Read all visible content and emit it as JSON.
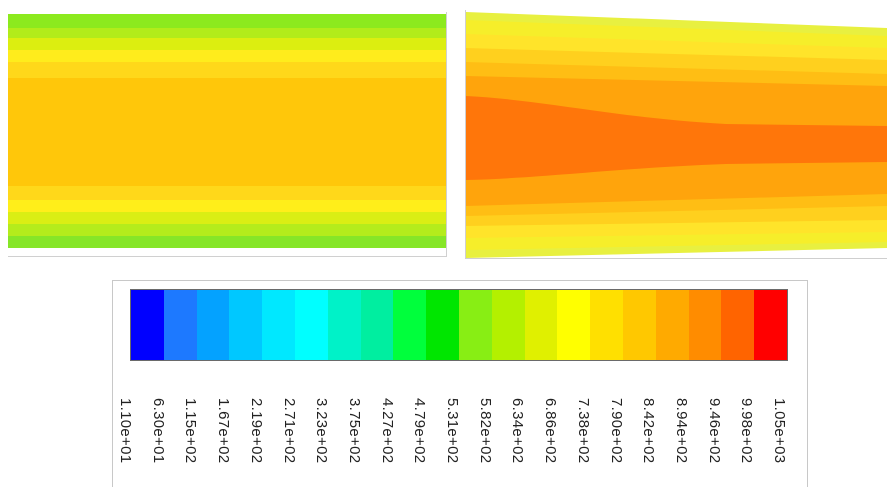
{
  "legend": {
    "colors": [
      "#0000ff",
      "#1d79ff",
      "#04a2ff",
      "#00c8ff",
      "#00e8ff",
      "#00ffff",
      "#00f2c8",
      "#00eea0",
      "#00ff3c",
      "#00e600",
      "#88ee14",
      "#b4f000",
      "#e0f000",
      "#ffff00",
      "#ffe000",
      "#ffc800",
      "#ffaa00",
      "#ff8c00",
      "#ff6400",
      "#ff0000"
    ],
    "ticks": [
      "1.10e+01",
      "6.30e+01",
      "1.15e+02",
      "1.67e+02",
      "2.19e+02",
      "2.71e+02",
      "3.23e+02",
      "3.75e+02",
      "4.27e+02",
      "4.79e+02",
      "5.31e+02",
      "5.82e+02",
      "6.34e+02",
      "6.86e+02",
      "7.38e+02",
      "7.90e+02",
      "8.42e+02",
      "8.94e+02",
      "9.46e+02",
      "9.98e+02",
      "1.05e+03"
    ]
  }
}
